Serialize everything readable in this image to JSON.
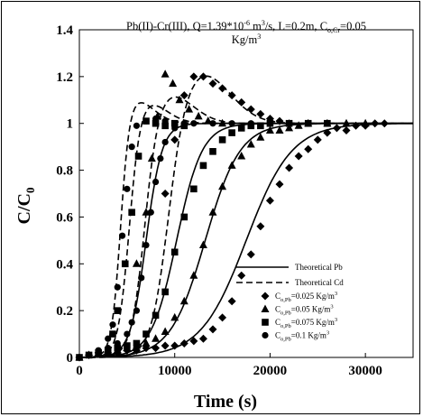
{
  "chart_data": {
    "type": "scatter",
    "title_line1": "Pb(II)-Cr(III), Q=1.39*10",
    "title_exp1": "-6",
    "title_line1b": " m",
    "title_exp2": "3",
    "title_line1c": "/s, L=0.2m, C",
    "title_sub": "o,Cr",
    "title_line1d": "=0.05",
    "title_line2": "Kg/m",
    "title_exp3": "3",
    "xlabel": "Time (s)",
    "ylabel_main": "C/C",
    "ylabel_sub": "0",
    "xlim": [
      0,
      35000
    ],
    "ylim": [
      0,
      1.4
    ],
    "xticks": [
      {
        "v": 0,
        "label": "0"
      },
      {
        "v": 10000,
        "label": "10000"
      },
      {
        "v": 20000,
        "label": "20000"
      },
      {
        "v": 30000,
        "label": "30000"
      }
    ],
    "yticks": [
      {
        "v": 0,
        "label": "0"
      },
      {
        "v": 0.2,
        "label": "0.2"
      },
      {
        "v": 0.4,
        "label": "0.4"
      },
      {
        "v": 0.6,
        "label": "0.6"
      },
      {
        "v": 0.8,
        "label": "0.8"
      },
      {
        "v": 1.0,
        "label": "1"
      },
      {
        "v": 1.2,
        "label": "1.2"
      },
      {
        "v": 1.4,
        "label": "1.4"
      }
    ],
    "legend": {
      "position": "bottom-right",
      "lines": [
        {
          "style": "solid",
          "label": "Theoretical Pb"
        },
        {
          "style": "dashed",
          "label": "Theoretical Cd"
        }
      ],
      "markers": [
        {
          "marker": "diamond",
          "label_pre": "C",
          "label_sub": "o,Pb",
          "label_post": "=0.025 Kg/m",
          "label_sup": "3"
        },
        {
          "marker": "triangle",
          "label_pre": "C",
          "label_sub": "o,Pb",
          "label_post": "=0.05 Kg/m",
          "label_sup": "3"
        },
        {
          "marker": "square",
          "label_pre": "C",
          "label_sub": "o,Pb",
          "label_post": "=0.075 Kg/m",
          "label_sup": "3"
        },
        {
          "marker": "circle",
          "label_pre": "C",
          "label_sub": "o,Pb",
          "label_post": "=0.1 Kg/m",
          "label_sup": "3"
        }
      ]
    },
    "series": [
      {
        "marker": "diamond",
        "pb_points": [
          [
            0,
            0
          ],
          [
            1000,
            0.01
          ],
          [
            2000,
            0.02
          ],
          [
            3000,
            0.02
          ],
          [
            4000,
            0.02
          ],
          [
            5000,
            0.03
          ],
          [
            6000,
            0.03
          ],
          [
            7000,
            0.04
          ],
          [
            8000,
            0.04
          ],
          [
            9000,
            0.05
          ],
          [
            10000,
            0.05
          ],
          [
            11000,
            0.06
          ],
          [
            12000,
            0.07
          ],
          [
            13000,
            0.08
          ],
          [
            14000,
            0.12
          ],
          [
            15000,
            0.17
          ],
          [
            16000,
            0.24
          ],
          [
            17000,
            0.35
          ],
          [
            18000,
            0.44
          ],
          [
            19000,
            0.56
          ],
          [
            20000,
            0.67
          ],
          [
            21000,
            0.74
          ],
          [
            22000,
            0.81
          ],
          [
            23000,
            0.86
          ],
          [
            24000,
            0.89
          ],
          [
            25000,
            0.93
          ],
          [
            26000,
            0.96
          ],
          [
            27000,
            0.98
          ],
          [
            28000,
            0.97
          ],
          [
            29000,
            0.99
          ],
          [
            30000,
            0.99
          ],
          [
            31000,
            1.0
          ],
          [
            32000,
            1.0
          ]
        ],
        "cr_points": [
          [
            9000,
            0.7
          ],
          [
            10000,
            0.93
          ],
          [
            11000,
            1.12
          ],
          [
            12000,
            1.2
          ],
          [
            13000,
            1.2
          ],
          [
            14000,
            1.17
          ],
          [
            15000,
            1.15
          ],
          [
            16000,
            1.12
          ],
          [
            17000,
            1.09
          ],
          [
            18000,
            1.06
          ],
          [
            19000,
            1.04
          ],
          [
            20000,
            1.02
          ],
          [
            21000,
            1.01
          ],
          [
            22000,
            1.0
          ]
        ],
        "pb_model": {
          "t50": 17500,
          "k": 0.00042
        },
        "cr_model": {
          "t50": 9200,
          "k": 0.0011,
          "peak": 1.22,
          "tp": 12700,
          "decay": 4200
        }
      },
      {
        "marker": "triangle",
        "pb_points": [
          [
            0,
            0
          ],
          [
            1000,
            0.01
          ],
          [
            2000,
            0.02
          ],
          [
            3000,
            0.02
          ],
          [
            4000,
            0.03
          ],
          [
            5000,
            0.04
          ],
          [
            6000,
            0.05
          ],
          [
            7000,
            0.06
          ],
          [
            8000,
            0.08
          ],
          [
            9000,
            0.11
          ],
          [
            10000,
            0.17
          ],
          [
            11000,
            0.24
          ],
          [
            12000,
            0.35
          ],
          [
            13000,
            0.48
          ],
          [
            14000,
            0.62
          ],
          [
            15000,
            0.73
          ],
          [
            16000,
            0.82
          ],
          [
            17000,
            0.86
          ],
          [
            18000,
            0.91
          ],
          [
            19000,
            0.94
          ],
          [
            20000,
            0.97
          ],
          [
            21000,
            0.97
          ],
          [
            22000,
            0.98
          ],
          [
            23000,
            0.99
          ],
          [
            24000,
            1.0
          ],
          [
            26000,
            1.0
          ],
          [
            28000,
            1.0
          ],
          [
            30000,
            1.0
          ]
        ],
        "cr_points": [
          [
            6000,
            0.4
          ],
          [
            7000,
            0.62
          ],
          [
            7600,
            0.85
          ],
          [
            8200,
            1.03
          ],
          [
            9000,
            1.21
          ],
          [
            9800,
            1.17
          ],
          [
            10500,
            1.1
          ],
          [
            11500,
            1.06
          ],
          [
            12500,
            1.03
          ],
          [
            13500,
            1.01
          ],
          [
            15000,
            1.0
          ]
        ],
        "pb_model": {
          "t50": 13200,
          "k": 0.00055
        },
        "cr_model": {
          "t50": 6800,
          "k": 0.0014,
          "peak": 1.13,
          "tp": 9300,
          "decay": 3500
        }
      },
      {
        "marker": "square",
        "pb_points": [
          [
            0,
            0
          ],
          [
            1000,
            0.01
          ],
          [
            2000,
            0.02
          ],
          [
            3000,
            0.03
          ],
          [
            4000,
            0.04
          ],
          [
            5000,
            0.05
          ],
          [
            6000,
            0.06
          ],
          [
            7000,
            0.1
          ],
          [
            8000,
            0.18
          ],
          [
            9000,
            0.28
          ],
          [
            10000,
            0.45
          ],
          [
            11000,
            0.6
          ],
          [
            12000,
            0.72
          ],
          [
            13000,
            0.82
          ],
          [
            14000,
            0.88
          ],
          [
            15000,
            0.93
          ],
          [
            16000,
            0.96
          ],
          [
            17000,
            0.98
          ],
          [
            18000,
            0.99
          ],
          [
            19000,
            0.99
          ],
          [
            20000,
            1.0
          ],
          [
            22000,
            1.0
          ],
          [
            24000,
            1.0
          ],
          [
            26000,
            1.0
          ]
        ],
        "cr_points": [
          [
            3500,
            0.1
          ],
          [
            4000,
            0.2
          ],
          [
            4800,
            0.4
          ],
          [
            5500,
            0.62
          ],
          [
            6200,
            0.86
          ],
          [
            7000,
            1.01
          ],
          [
            8000,
            1.0
          ],
          [
            9000,
            0.99
          ],
          [
            10000,
            1.0
          ],
          [
            11000,
            0.99
          ]
        ],
        "pb_model": {
          "t50": 10200,
          "k": 0.00075
        },
        "cr_model": {
          "t50": 5200,
          "k": 0.0017,
          "peak": 1.1,
          "tp": 6800,
          "decay": 3000
        }
      },
      {
        "marker": "circle",
        "pb_points": [
          [
            0,
            0
          ],
          [
            1000,
            0.01
          ],
          [
            2000,
            0.02
          ],
          [
            3000,
            0.04
          ],
          [
            4000,
            0.06
          ],
          [
            5000,
            0.1
          ],
          [
            5500,
            0.15
          ],
          [
            6000,
            0.2
          ],
          [
            6500,
            0.34
          ],
          [
            7000,
            0.48
          ],
          [
            7500,
            0.62
          ],
          [
            8000,
            0.75
          ],
          [
            8500,
            0.85
          ],
          [
            9000,
            0.92
          ],
          [
            10000,
            0.98
          ],
          [
            11000,
            1.0
          ],
          [
            12000,
            1.0
          ],
          [
            14000,
            1.0
          ],
          [
            16000,
            1.0
          ],
          [
            18000,
            1.0
          ],
          [
            20000,
            1.0
          ],
          [
            22000,
            1.0
          ]
        ],
        "cr_points": [
          [
            2000,
            0.03
          ],
          [
            3000,
            0.08
          ],
          [
            3500,
            0.14
          ],
          [
            4000,
            0.3
          ],
          [
            4500,
            0.52
          ],
          [
            5000,
            0.72
          ],
          [
            5500,
            0.9
          ],
          [
            6000,
            0.99
          ],
          [
            7000,
            1.01
          ],
          [
            8000,
            1.02
          ],
          [
            9000,
            1.01
          ],
          [
            10000,
            1.0
          ]
        ],
        "pb_model": {
          "t50": 7000,
          "k": 0.0012
        },
        "cr_model": {
          "t50": 4300,
          "k": 0.0021,
          "peak": 1.11,
          "tp": 5600,
          "decay": 2800
        }
      }
    ]
  }
}
